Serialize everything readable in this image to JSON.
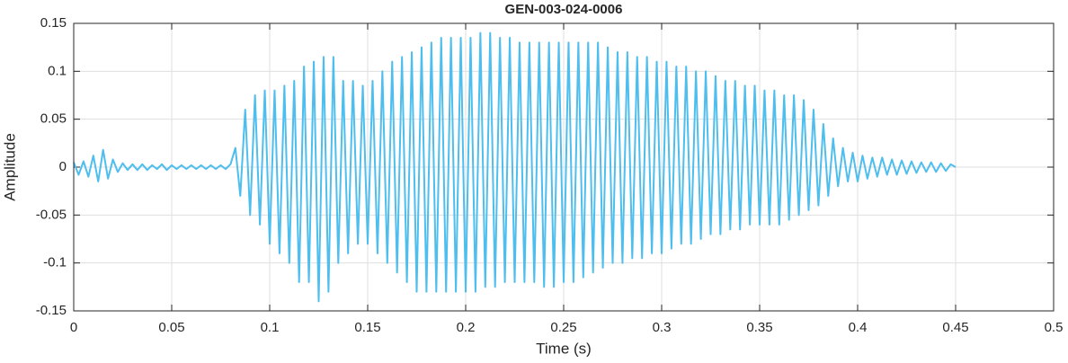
{
  "chart_data": {
    "type": "line",
    "title": "GEN-003-024-0006",
    "x_label": "Time (s)",
    "y_label": "Amplitude",
    "xlim": [
      0,
      0.5
    ],
    "xticks": [
      0,
      0.05,
      0.1,
      0.15,
      0.2,
      0.25,
      0.3,
      0.35,
      0.4,
      0.45,
      0.5
    ],
    "ylim": [
      -0.15,
      0.15
    ],
    "yticks": [
      0.15,
      0.1,
      0.05,
      0,
      -0.05,
      -0.1,
      -0.15
    ],
    "grid": true,
    "series": [
      {
        "color": "#4dbeee",
        "x": [
          0,
          0.0025,
          0.005,
          0.0075,
          0.01,
          0.0125,
          0.015,
          0.0175,
          0.02,
          0.0225,
          0.025,
          0.0275,
          0.03,
          0.0325,
          0.035,
          0.0375,
          0.04,
          0.0425,
          0.045,
          0.0475,
          0.05,
          0.0525,
          0.055,
          0.0575,
          0.06,
          0.0625,
          0.065,
          0.0675,
          0.07,
          0.0725,
          0.075,
          0.0775,
          0.08,
          0.0825,
          0.085,
          0.0875,
          0.09,
          0.0925,
          0.095,
          0.0975,
          0.1,
          0.1025,
          0.105,
          0.1075,
          0.11,
          0.1125,
          0.115,
          0.1175,
          0.12,
          0.1225,
          0.125,
          0.1275,
          0.13,
          0.1325,
          0.135,
          0.1375,
          0.14,
          0.1425,
          0.145,
          0.1475,
          0.15,
          0.1525,
          0.155,
          0.1575,
          0.16,
          0.1625,
          0.165,
          0.1675,
          0.17,
          0.1725,
          0.175,
          0.1775,
          0.18,
          0.1825,
          0.185,
          0.1875,
          0.19,
          0.1925,
          0.195,
          0.1975,
          0.2,
          0.2025,
          0.205,
          0.2075,
          0.21,
          0.2125,
          0.215,
          0.2175,
          0.22,
          0.2225,
          0.225,
          0.2275,
          0.23,
          0.2325,
          0.235,
          0.2375,
          0.24,
          0.2425,
          0.245,
          0.2475,
          0.25,
          0.2525,
          0.255,
          0.2575,
          0.26,
          0.2625,
          0.265,
          0.2675,
          0.27,
          0.2725,
          0.275,
          0.2775,
          0.28,
          0.2825,
          0.285,
          0.2875,
          0.29,
          0.2925,
          0.295,
          0.2975,
          0.3,
          0.3025,
          0.305,
          0.3075,
          0.31,
          0.3125,
          0.315,
          0.3175,
          0.32,
          0.3225,
          0.325,
          0.3275,
          0.33,
          0.3325,
          0.335,
          0.3375,
          0.34,
          0.3425,
          0.345,
          0.3475,
          0.35,
          0.3525,
          0.355,
          0.3575,
          0.36,
          0.3625,
          0.365,
          0.3675,
          0.37,
          0.3725,
          0.375,
          0.3775,
          0.38,
          0.3825,
          0.385,
          0.3875,
          0.39,
          0.3925,
          0.395,
          0.3975,
          0.4,
          0.4025,
          0.405,
          0.4075,
          0.41,
          0.4125,
          0.415,
          0.4175,
          0.42,
          0.4225,
          0.425,
          0.4275,
          0.43,
          0.4325,
          0.435,
          0.4375,
          0.44,
          0.4425,
          0.445,
          0.4475,
          0.45
        ],
        "values": [
          0.005,
          -0.008,
          0.006,
          -0.01,
          0.012,
          -0.015,
          0.018,
          -0.012,
          0.008,
          -0.005,
          0.004,
          -0.003,
          0.003,
          -0.003,
          0.003,
          -0.003,
          0.002,
          -0.002,
          0.003,
          -0.003,
          0.002,
          -0.002,
          0.002,
          -0.002,
          0.002,
          -0.002,
          0.002,
          -0.002,
          0.002,
          -0.002,
          0.002,
          -0.002,
          0.003,
          0.02,
          -0.03,
          0.06,
          -0.05,
          0.075,
          -0.06,
          0.08,
          -0.08,
          0.08,
          -0.09,
          0.085,
          -0.1,
          0.09,
          -0.12,
          0.105,
          -0.12,
          0.11,
          -0.14,
          0.115,
          -0.13,
          0.115,
          -0.1,
          0.09,
          -0.09,
          0.09,
          -0.08,
          0.085,
          -0.08,
          0.09,
          -0.09,
          0.1,
          -0.1,
          0.11,
          -0.11,
          0.115,
          -0.12,
          0.12,
          -0.13,
          0.125,
          -0.13,
          0.13,
          -0.13,
          0.135,
          -0.13,
          0.135,
          -0.13,
          0.135,
          -0.13,
          0.135,
          -0.13,
          0.14,
          -0.125,
          0.14,
          -0.125,
          0.135,
          -0.12,
          0.135,
          -0.12,
          0.13,
          -0.12,
          0.13,
          -0.12,
          0.13,
          -0.125,
          0.13,
          -0.125,
          0.13,
          -0.12,
          0.13,
          -0.12,
          0.13,
          -0.115,
          0.13,
          -0.11,
          0.13,
          -0.105,
          0.125,
          -0.1,
          0.12,
          -0.1,
          0.12,
          -0.095,
          0.115,
          -0.095,
          0.115,
          -0.09,
          0.11,
          -0.09,
          0.11,
          -0.085,
          0.105,
          -0.08,
          0.105,
          -0.08,
          0.1,
          -0.075,
          0.1,
          -0.07,
          0.095,
          -0.07,
          0.09,
          -0.065,
          0.09,
          -0.065,
          0.085,
          -0.06,
          0.085,
          -0.06,
          0.08,
          -0.06,
          0.08,
          -0.06,
          0.075,
          -0.055,
          0.075,
          -0.05,
          0.07,
          -0.045,
          0.06,
          -0.04,
          0.045,
          -0.03,
          0.03,
          -0.02,
          0.02,
          -0.015,
          0.015,
          -0.015,
          0.012,
          -0.012,
          0.01,
          -0.01,
          0.01,
          -0.008,
          0.008,
          -0.008,
          0.007,
          -0.007,
          0.006,
          -0.006,
          0.005,
          -0.005,
          0.005,
          -0.005,
          0.004,
          -0.004,
          0.003,
          0
        ]
      }
    ]
  }
}
